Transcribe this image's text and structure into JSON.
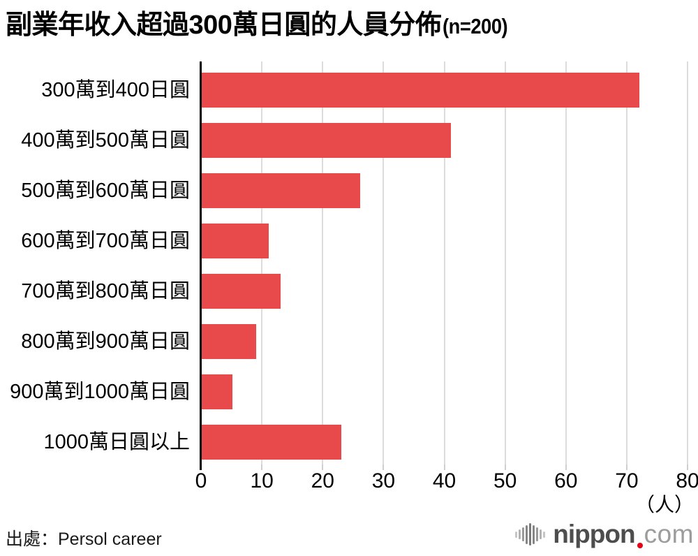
{
  "title": {
    "main": "副業年收入超過300萬日圓的人員分佈",
    "suffix": "(n=200)"
  },
  "chart_data": {
    "type": "bar",
    "orientation": "horizontal",
    "categories": [
      "300萬到400日圓",
      "400萬到500萬日圓",
      "500萬到600萬日圓",
      "600萬到700萬日圓",
      "700萬到800萬日圓",
      "800萬到900萬日圓",
      "900萬到1000萬日圓",
      "1000萬日圓以上"
    ],
    "values": [
      72,
      41,
      26,
      11,
      13,
      9,
      5,
      23
    ],
    "xlim": [
      0,
      80
    ],
    "xticks": [
      0,
      10,
      20,
      30,
      40,
      50,
      60,
      70,
      80
    ],
    "x_unit": "（人）",
    "grid": true,
    "legend": false,
    "bar_color": "#e8494a",
    "grid_color": "#dcdcdc",
    "axis_color": "#000000"
  },
  "source": {
    "label": "出處：Persol career"
  },
  "logo": {
    "brand": "nippon",
    "tld": "com",
    "icon": "soundwave-icon",
    "brand_color": "#4d4d4d",
    "tld_color": "#9c9c9c",
    "dot_color": "#e60012",
    "icon_bar_heights": [
      9,
      14,
      20,
      27,
      32,
      27,
      20,
      14,
      9
    ],
    "icon_bar_colors": [
      "#c6c6c6",
      "#b2b2b2",
      "#9a9a9a",
      "#858585",
      "#7a7a7a",
      "#858585",
      "#9a9a9a",
      "#b2b2b2",
      "#c6c6c6"
    ]
  }
}
